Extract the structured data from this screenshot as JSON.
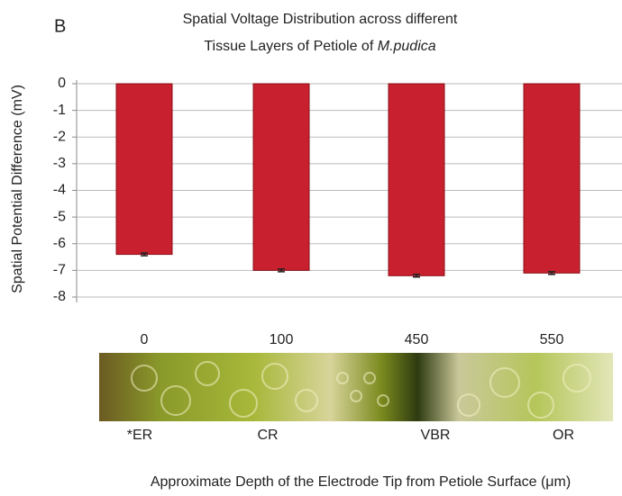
{
  "chart_data": {
    "type": "bar",
    "panel_label": "B",
    "title_lines": [
      "Spatial Voltage Distribution across different",
      "Tissue Layers of Petiole of"
    ],
    "title_species": "M.pudica",
    "ylabel": "Spatial Potential Difference (mV)",
    "xlabel": "Approximate Depth of the Electrode Tip from Petiole Surface (μm)",
    "categories": [
      "0",
      "100",
      "450",
      "550"
    ],
    "tissue_labels": [
      "*ER",
      "CR",
      "VBR",
      "OR"
    ],
    "values": [
      -6.4,
      -7.0,
      -7.2,
      -7.1
    ],
    "errors": [
      0.05,
      0.05,
      0.05,
      0.05
    ],
    "color": "#c8202e",
    "ylim": [
      -8,
      0
    ],
    "yticks": [
      0,
      -1,
      -2,
      -3,
      -4,
      -5,
      -6,
      -7,
      -8
    ],
    "grid": true
  }
}
